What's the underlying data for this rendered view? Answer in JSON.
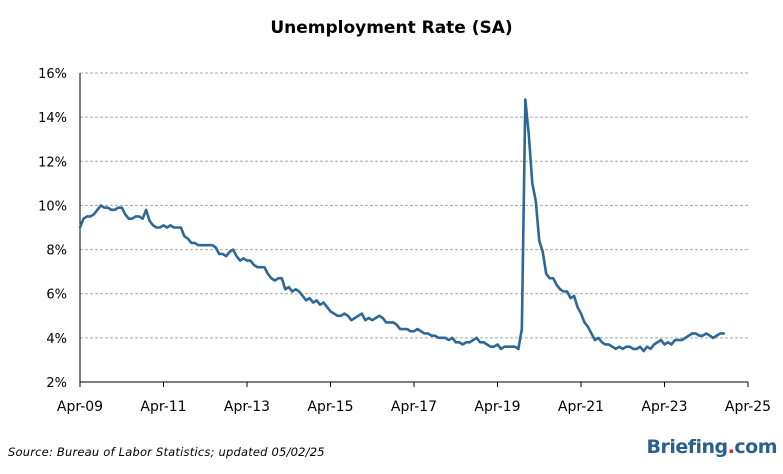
{
  "title": "Unemployment Rate (SA)",
  "source": "Source: Bureau of Labor Statistics; updated 05/02/25",
  "logo": {
    "name": "Briefing",
    "dot": ".",
    "tld": "com"
  },
  "colors": {
    "line": "#2f6796",
    "grid": "#a8a8a8",
    "axis": "#000000",
    "logo": "#2b5f8e",
    "logo_dot": "#d8232a"
  },
  "chart_data": {
    "type": "line",
    "title": "Unemployment Rate (SA)",
    "xlabel": "",
    "ylabel": "",
    "ylim": [
      2,
      16
    ],
    "xlim": [
      "2009-04",
      "2025-04"
    ],
    "grid": "horizontal dashed",
    "y_ticks": [
      "2%",
      "4%",
      "6%",
      "8%",
      "10%",
      "12%",
      "14%",
      "16%"
    ],
    "x_ticks": [
      {
        "label": "Apr-09",
        "x": "2009-04"
      },
      {
        "label": "Apr-11",
        "x": "2011-04"
      },
      {
        "label": "Apr-13",
        "x": "2013-04"
      },
      {
        "label": "Apr-15",
        "x": "2015-04"
      },
      {
        "label": "Apr-17",
        "x": "2017-04"
      },
      {
        "label": "Apr-19",
        "x": "2019-04"
      },
      {
        "label": "Apr-21",
        "x": "2021-04"
      },
      {
        "label": "Apr-23",
        "x": "2023-04"
      },
      {
        "label": "Apr-25",
        "x": "2025-04"
      }
    ],
    "series": [
      {
        "start": "2009-04",
        "frequency": "monthly",
        "values": [
          9.0,
          9.4,
          9.5,
          9.5,
          9.6,
          9.8,
          10.0,
          9.9,
          9.9,
          9.8,
          9.8,
          9.9,
          9.9,
          9.6,
          9.4,
          9.4,
          9.5,
          9.5,
          9.4,
          9.8,
          9.3,
          9.1,
          9.0,
          9.0,
          9.1,
          9.0,
          9.1,
          9.0,
          9.0,
          9.0,
          8.6,
          8.5,
          8.3,
          8.3,
          8.2,
          8.2,
          8.2,
          8.2,
          8.2,
          8.1,
          7.8,
          7.8,
          7.7,
          7.9,
          8.0,
          7.7,
          7.5,
          7.6,
          7.5,
          7.5,
          7.3,
          7.2,
          7.2,
          7.2,
          6.9,
          6.7,
          6.6,
          6.7,
          6.7,
          6.2,
          6.3,
          6.1,
          6.2,
          6.1,
          5.9,
          5.7,
          5.8,
          5.6,
          5.7,
          5.5,
          5.6,
          5.4,
          5.2,
          5.1,
          5.0,
          5.0,
          5.1,
          5.0,
          4.8,
          4.9,
          5.0,
          5.1,
          4.8,
          4.9,
          4.8,
          4.9,
          5.0,
          4.9,
          4.7,
          4.7,
          4.7,
          4.6,
          4.4,
          4.4,
          4.4,
          4.3,
          4.3,
          4.4,
          4.3,
          4.2,
          4.2,
          4.1,
          4.1,
          4.0,
          4.0,
          4.0,
          3.9,
          4.0,
          3.8,
          3.8,
          3.7,
          3.8,
          3.8,
          3.9,
          4.0,
          3.8,
          3.8,
          3.7,
          3.6,
          3.6,
          3.7,
          3.5,
          3.6,
          3.6,
          3.6,
          3.6,
          3.5,
          4.4,
          14.8,
          13.2,
          11.0,
          10.2,
          8.4,
          7.9,
          6.9,
          6.7,
          6.7,
          6.4,
          6.2,
          6.1,
          6.1,
          5.8,
          5.9,
          5.4,
          5.1,
          4.7,
          4.5,
          4.2,
          3.9,
          4.0,
          3.8,
          3.7,
          3.7,
          3.6,
          3.5,
          3.6,
          3.5,
          3.6,
          3.6,
          3.5,
          3.5,
          3.6,
          3.4,
          3.6,
          3.5,
          3.7,
          3.8,
          3.9,
          3.7,
          3.8,
          3.7,
          3.9,
          3.9,
          3.9,
          4.0,
          4.1,
          4.2,
          4.2,
          4.1,
          4.1,
          4.2,
          4.1,
          4.0,
          4.1,
          4.2,
          4.2
        ]
      }
    ]
  }
}
